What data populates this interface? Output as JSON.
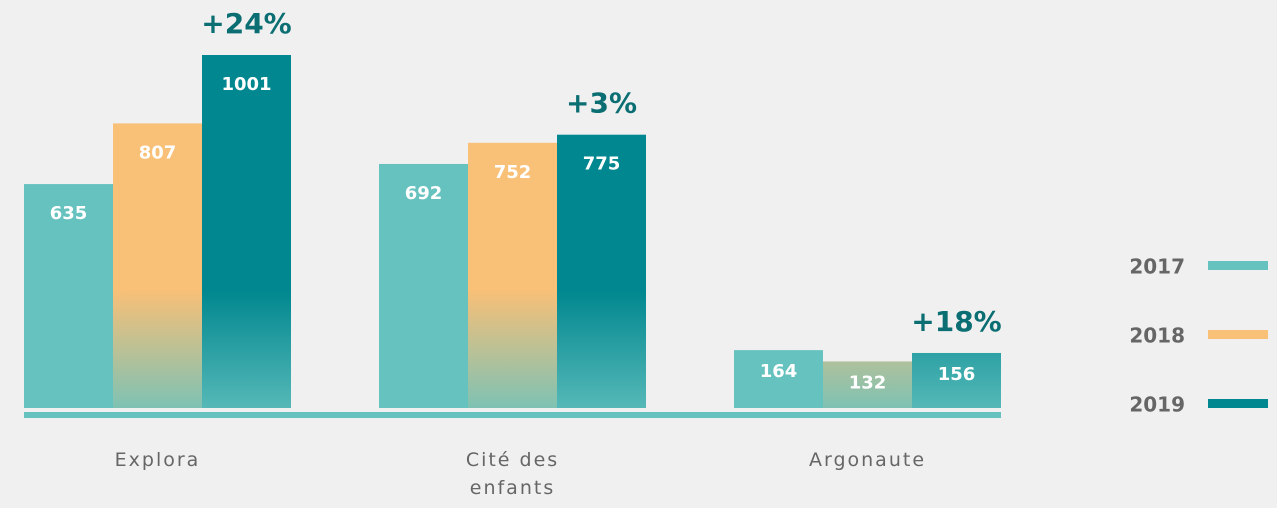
{
  "chart_data": {
    "type": "bar",
    "categories": [
      "Explora",
      "Cité des enfants",
      "Argonaute"
    ],
    "series": [
      {
        "name": "2017",
        "color": "#66c2bf",
        "values": [
          635,
          692,
          164
        ]
      },
      {
        "name": "2018",
        "color": "#f9c077",
        "values": [
          807,
          752,
          132
        ]
      },
      {
        "name": "2019",
        "color": "#00878f",
        "values": [
          1001,
          775,
          156
        ]
      }
    ],
    "annotations": [
      "+24%",
      "+3%",
      "+18%"
    ],
    "legend": "right"
  }
}
